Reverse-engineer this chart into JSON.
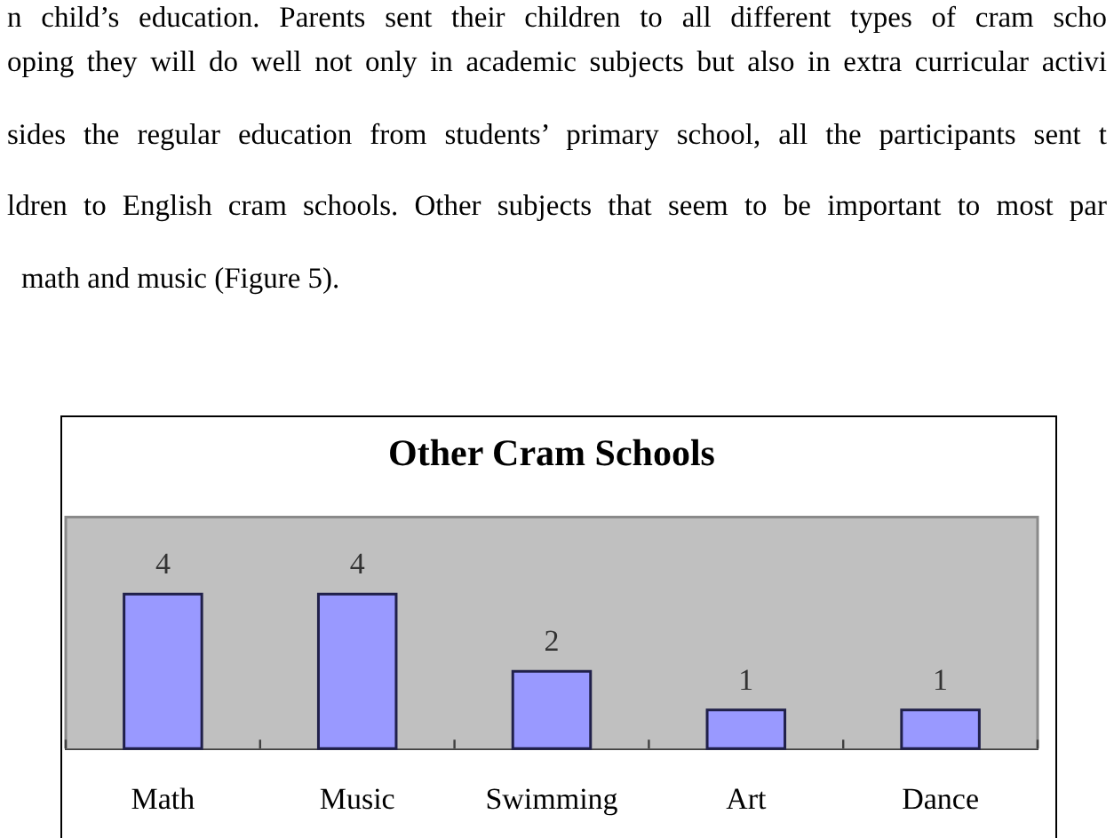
{
  "chart_data": {
    "type": "bar",
    "title": "Other Cram Schools",
    "categories": [
      "Math",
      "Music",
      "Swimming",
      "Art",
      "Dance"
    ],
    "values": [
      4,
      4,
      2,
      1,
      1
    ],
    "color": "#9999ff",
    "ylim": [
      0,
      6
    ],
    "data_labels": true,
    "tick_labels": "x",
    "annotations": [
      "n child’s education. Parents sent their children to all different types of cram scho",
      "oping they will do well not only in academic subjects but also in extra curricular activi",
      "sides the regular education from students’ primary school, all the participants sent t",
      "ldren to English cram schools. Other subjects that seem to be important to most par",
      "math and music (Figure 5)."
    ]
  }
}
